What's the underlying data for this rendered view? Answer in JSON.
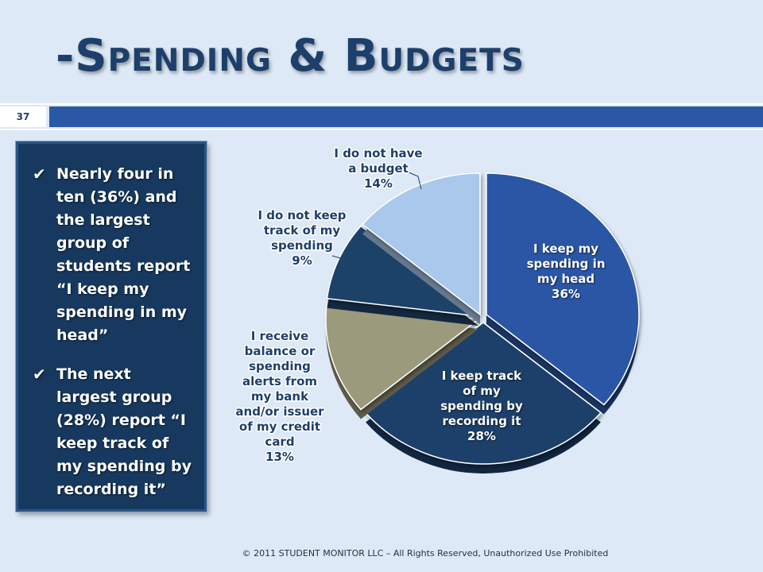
{
  "slide": {
    "title": "-Spending & Budgets",
    "page_number": "37",
    "footer": "© 2011 STUDENT MONITOR LLC – All Rights Reserved, Unauthorized Use Prohibited"
  },
  "callout": {
    "bullets": [
      "Nearly four in ten (36%) and the largest group of students report “I keep my spending in my head”",
      "The next largest group (28%) report “I keep track of my spending by recording it”"
    ]
  },
  "colors": {
    "title": "#1d3f6b",
    "header_bar": "#2a58a4",
    "callout_bg": "#17395f"
  },
  "chart_data": {
    "type": "pie",
    "title": "",
    "slices": [
      {
        "label_lines": [
          "I keep my",
          "spending in",
          "my head"
        ],
        "value_label": "36%",
        "value": 36,
        "color": "#2b56a5",
        "label_color": "#ffffff"
      },
      {
        "label_lines": [
          "I keep track",
          "of my",
          "spending by",
          "recording it"
        ],
        "value_label": "28%",
        "value": 28,
        "color": "#1d3f6b",
        "label_color": "#ffffff"
      },
      {
        "label_lines": [
          "I receive",
          "balance or",
          "spending",
          "alerts from",
          "my bank",
          "and/or issuer",
          "of my credit",
          "card"
        ],
        "value_label": "13%",
        "value": 13,
        "color": "#9c9a7c",
        "label_color": "#1d3f6b"
      },
      {
        "label_lines": [
          "I do not keep",
          "track of my",
          "spending"
        ],
        "value_label": "9%",
        "value": 9,
        "color": "#1f4268",
        "label_color": "#1d3f6b"
      },
      {
        "label_lines": [
          "I do not have",
          "a budget"
        ],
        "value_label": "14%",
        "value": 14,
        "color": "#a9c8ec",
        "label_color": "#1d3f6b"
      }
    ]
  }
}
